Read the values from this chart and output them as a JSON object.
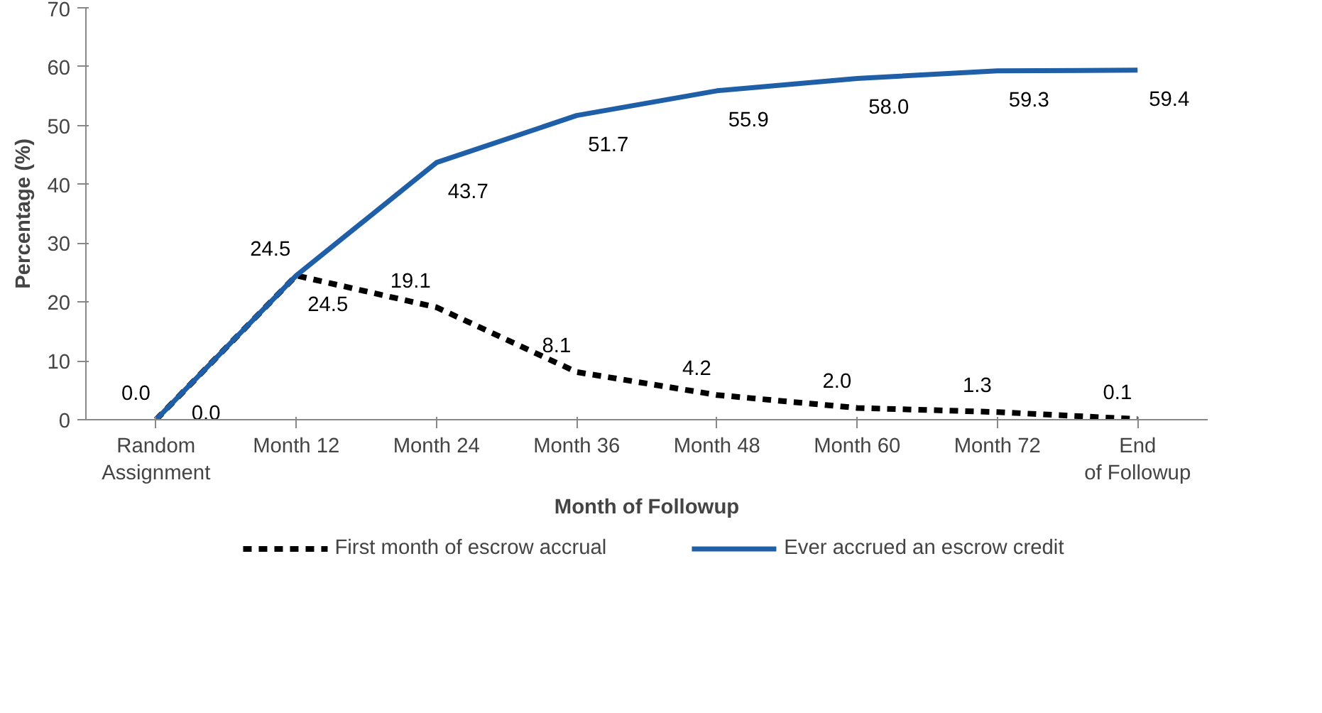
{
  "chart_data": {
    "type": "line",
    "xlabel": "Month of Followup",
    "ylabel": "Percentage (%)",
    "categories": [
      "Random Assignment",
      "Month 12",
      "Month 24",
      "Month 36",
      "Month 48",
      "Month 60",
      "Month 72",
      "End of Followup"
    ],
    "series": [
      {
        "name": "First month of escrow accrual",
        "color": "#000000",
        "line_style": "dashed",
        "values": [
          0.0,
          24.5,
          19.1,
          8.1,
          4.2,
          2.0,
          1.3,
          0.1
        ],
        "value_labels": [
          "0.0",
          "24.5",
          "19.1",
          "8.1",
          "4.2",
          "2.0",
          "1.3",
          "0.1"
        ]
      },
      {
        "name": "Ever accrued an escrow credit",
        "color": "#1f5fa8",
        "line_style": "solid",
        "values": [
          0.0,
          24.5,
          43.7,
          51.7,
          55.9,
          58.0,
          59.3,
          59.4
        ],
        "value_labels": [
          "0.0",
          "24.5",
          "43.7",
          "51.7",
          "55.9",
          "58.0",
          "59.3",
          "59.4"
        ]
      }
    ],
    "ylim": [
      0,
      70
    ],
    "yticks": [
      0,
      10,
      20,
      30,
      40,
      50,
      60,
      70
    ],
    "legend": "bottom"
  }
}
